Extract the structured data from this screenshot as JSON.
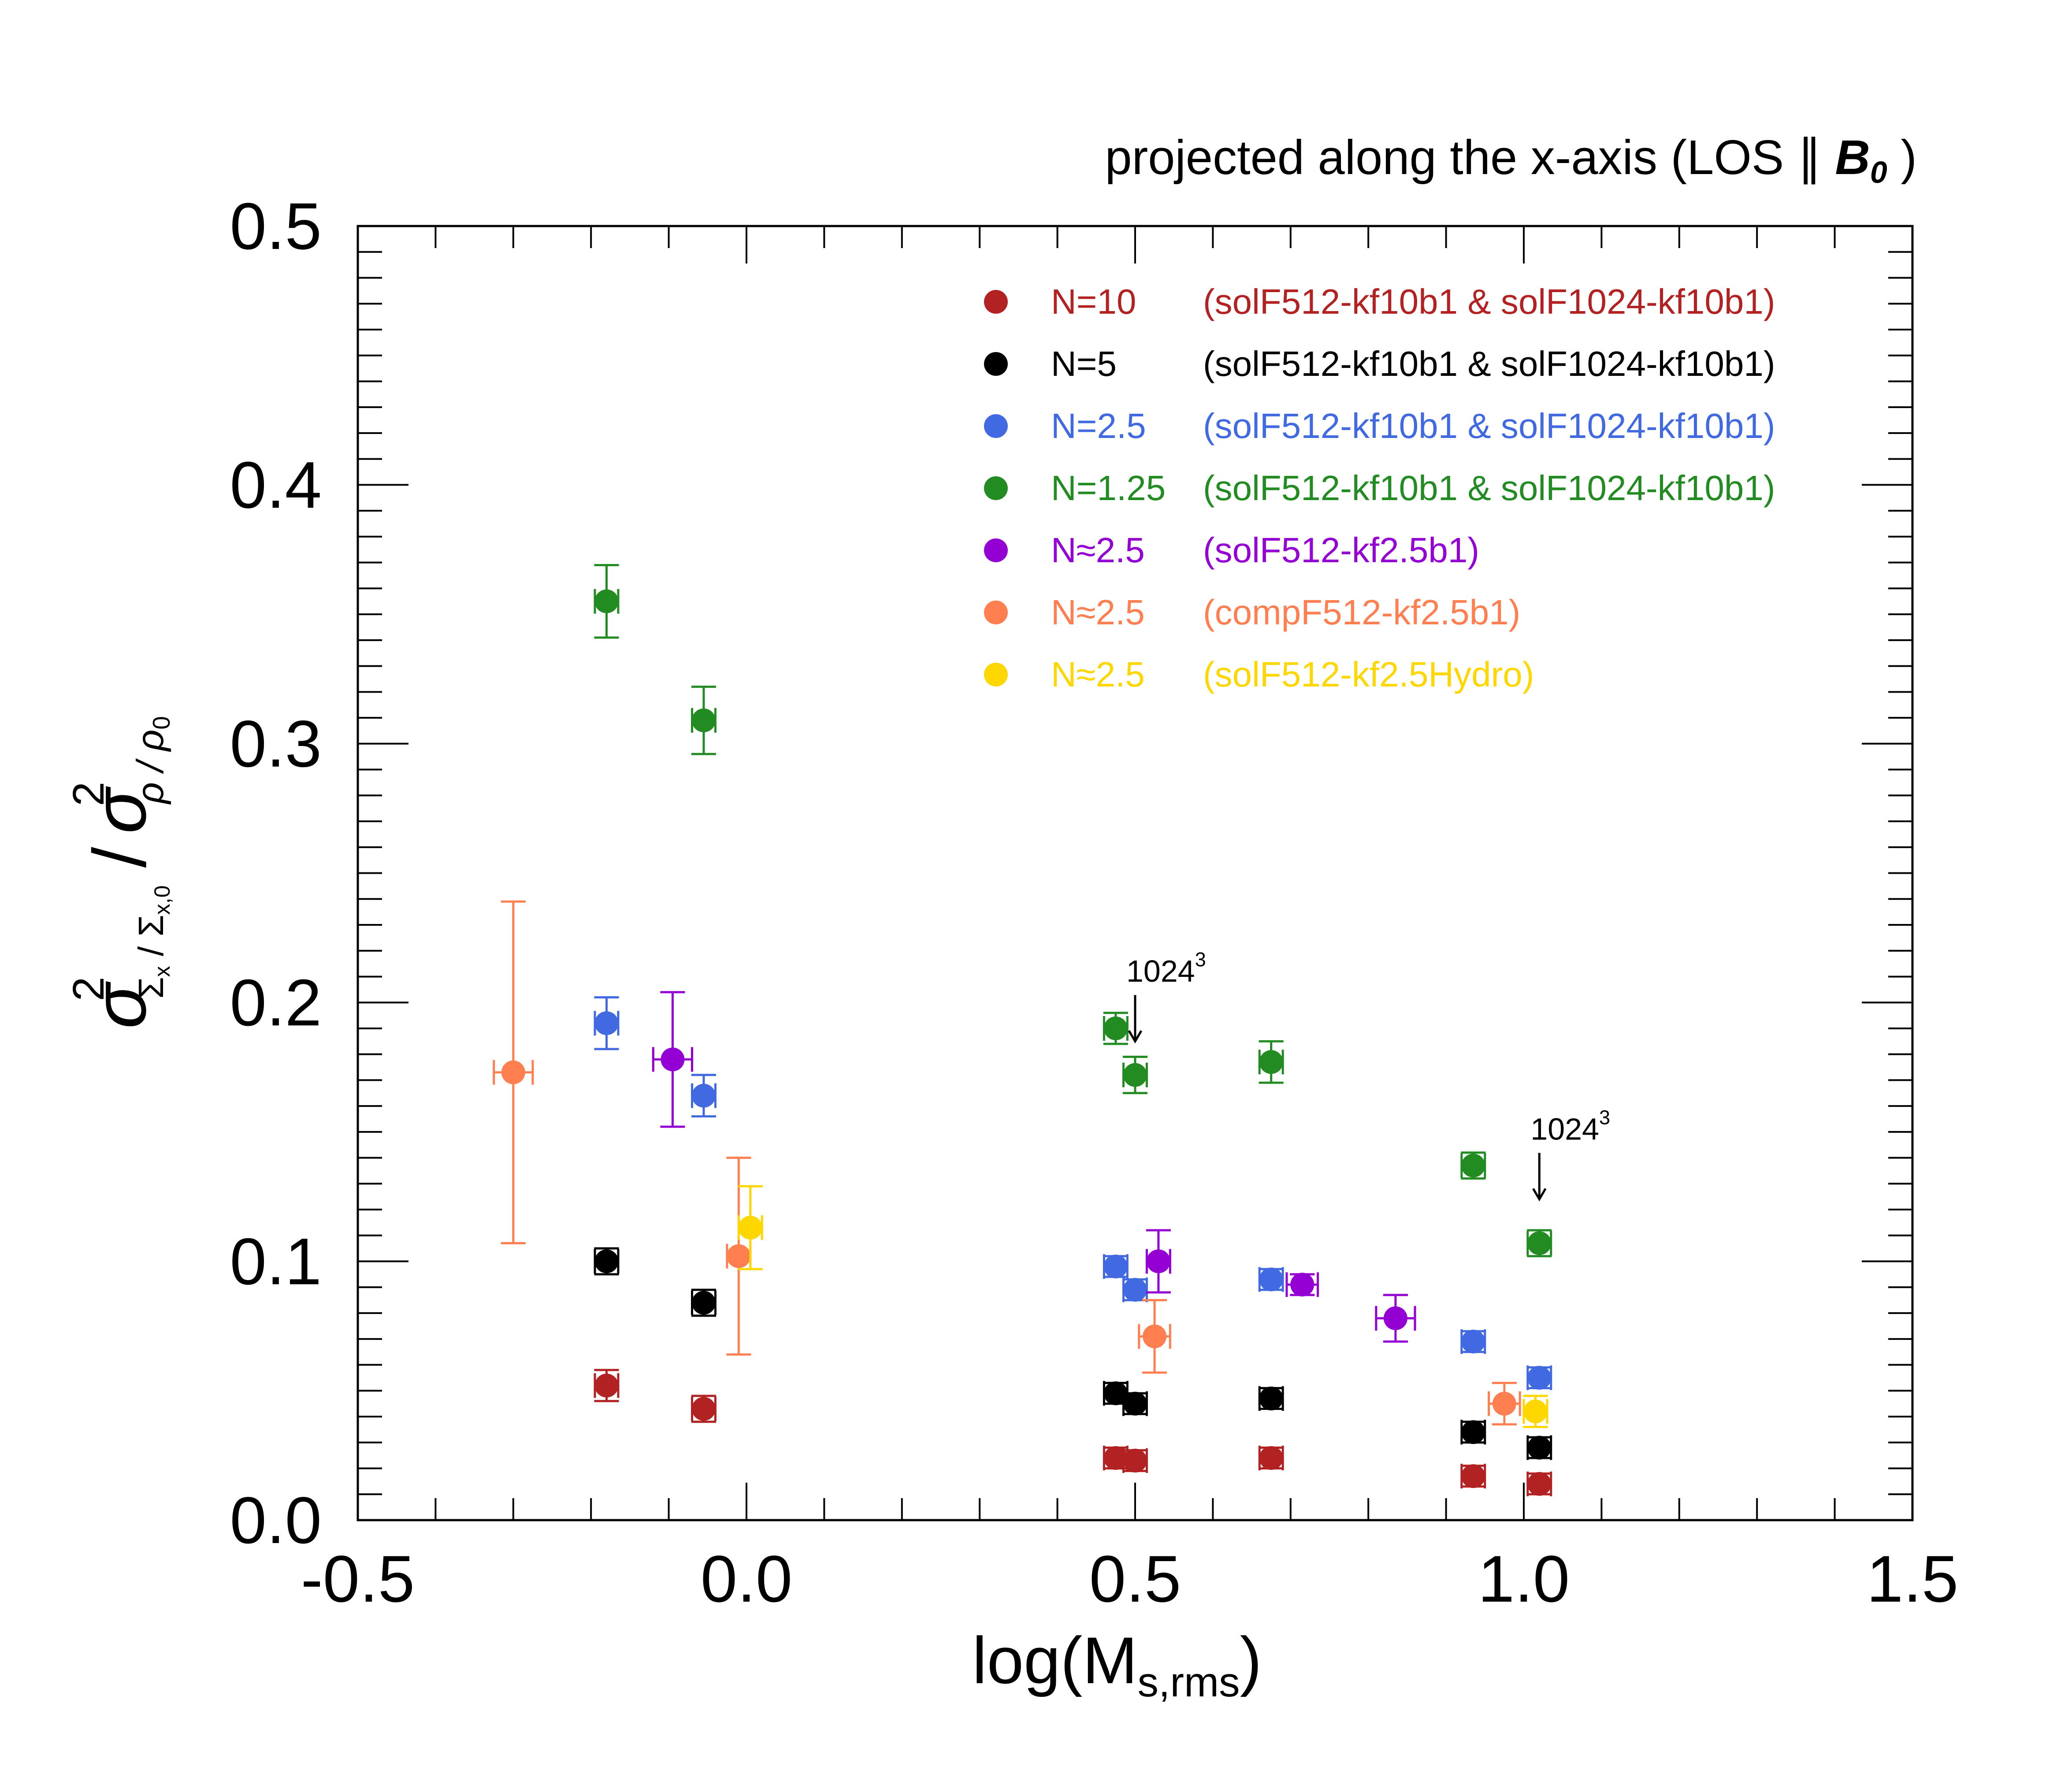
{
  "chart_data": {
    "type": "scatter",
    "title": "projected along the x-axis (LOS ∥ B₀)",
    "title_parts": {
      "prefix": "projected along the x-axis (LOS ∥ ",
      "b": "B",
      "b_sub": "0",
      "suffix": " )"
    },
    "xlabel": "log(M_s,rms)",
    "xlabel_parts": {
      "main": "log(M",
      "sub": "s,rms",
      "close": ")"
    },
    "ylabel": "σ²_{Σx/Σx,0} / σ²_{ρ/ρ0}",
    "ylabel_parts": {
      "sigma": "σ",
      "sq": "2",
      "num_sub": "Σ",
      "num_sub_x": "x",
      "slash_sub": " / ",
      "den_sub": "Σ",
      "den_sub_x": "x,0",
      "slash": "/",
      "den_sigma": "σ",
      "den_sq": "2",
      "rho_sub": "ρ / ρ",
      "rho0": "0"
    },
    "xlim": [
      -0.5,
      1.5
    ],
    "ylim": [
      0.0,
      0.5
    ],
    "xticks": [
      -0.5,
      0.0,
      0.5,
      1.0,
      1.5
    ],
    "xtick_labels": [
      "-0.5",
      "0.0",
      "0.5",
      "1.0",
      "1.5"
    ],
    "yticks": [
      0.0,
      0.1,
      0.2,
      0.3,
      0.4,
      0.5
    ],
    "ytick_labels": [
      "0.0",
      "0.1",
      "0.2",
      "0.3",
      "0.4",
      "0.5"
    ],
    "grid": false,
    "legend_position": "top-right",
    "series": [
      {
        "name": "N=10",
        "desc": "(solF512-kf10b1 & solF1024-kf10b1)",
        "color": "#b22222",
        "points": [
          {
            "x": -0.18,
            "y": 0.052,
            "xerr": 0.015,
            "yerr": 0.006
          },
          {
            "x": -0.055,
            "y": 0.043,
            "xerr": 0.015,
            "yerr": 0.005
          },
          {
            "x": 0.475,
            "y": 0.024,
            "xerr": 0.015,
            "yerr": 0.004
          },
          {
            "x": 0.5,
            "y": 0.023,
            "xerr": 0.015,
            "yerr": 0.004
          },
          {
            "x": 0.675,
            "y": 0.024,
            "xerr": 0.015,
            "yerr": 0.004
          },
          {
            "x": 0.935,
            "y": 0.017,
            "xerr": 0.015,
            "yerr": 0.004
          },
          {
            "x": 1.02,
            "y": 0.014,
            "xerr": 0.015,
            "yerr": 0.004
          }
        ]
      },
      {
        "name": "N=5",
        "desc": "(solF512-kf10b1 & solF1024-kf10b1)",
        "color": "#000000",
        "points": [
          {
            "x": -0.18,
            "y": 0.1,
            "xerr": 0.015,
            "yerr": 0.005
          },
          {
            "x": -0.055,
            "y": 0.084,
            "xerr": 0.015,
            "yerr": 0.005
          },
          {
            "x": 0.475,
            "y": 0.049,
            "xerr": 0.015,
            "yerr": 0.004
          },
          {
            "x": 0.5,
            "y": 0.045,
            "xerr": 0.015,
            "yerr": 0.004
          },
          {
            "x": 0.675,
            "y": 0.047,
            "xerr": 0.015,
            "yerr": 0.004
          },
          {
            "x": 0.935,
            "y": 0.034,
            "xerr": 0.015,
            "yerr": 0.004
          },
          {
            "x": 1.02,
            "y": 0.028,
            "xerr": 0.015,
            "yerr": 0.004
          }
        ]
      },
      {
        "name": "N=2.5",
        "desc": "(solF512-kf10b1 & solF1024-kf10b1)",
        "color": "#4169e1",
        "points": [
          {
            "x": -0.18,
            "y": 0.192,
            "xerr": 0.015,
            "yerr": 0.01
          },
          {
            "x": -0.055,
            "y": 0.164,
            "xerr": 0.015,
            "yerr": 0.008
          },
          {
            "x": 0.475,
            "y": 0.098,
            "xerr": 0.015,
            "yerr": 0.004
          },
          {
            "x": 0.5,
            "y": 0.089,
            "xerr": 0.015,
            "yerr": 0.004
          },
          {
            "x": 0.675,
            "y": 0.093,
            "xerr": 0.015,
            "yerr": 0.004
          },
          {
            "x": 0.935,
            "y": 0.069,
            "xerr": 0.015,
            "yerr": 0.004
          },
          {
            "x": 1.02,
            "y": 0.055,
            "xerr": 0.015,
            "yerr": 0.004
          }
        ]
      },
      {
        "name": "N=1.25",
        "desc": "(solF512-kf10b1 & solF1024-kf10b1)",
        "color": "#228b22",
        "points": [
          {
            "x": -0.18,
            "y": 0.355,
            "xerr": 0.015,
            "yerr": 0.014
          },
          {
            "x": -0.055,
            "y": 0.309,
            "xerr": 0.015,
            "yerr": 0.013
          },
          {
            "x": 0.475,
            "y": 0.19,
            "xerr": 0.015,
            "yerr": 0.006
          },
          {
            "x": 0.5,
            "y": 0.172,
            "xerr": 0.015,
            "yerr": 0.007
          },
          {
            "x": 0.675,
            "y": 0.177,
            "xerr": 0.015,
            "yerr": 0.008
          },
          {
            "x": 0.935,
            "y": 0.137,
            "xerr": 0.015,
            "yerr": 0.005
          },
          {
            "x": 1.02,
            "y": 0.107,
            "xerr": 0.015,
            "yerr": 0.005
          }
        ]
      },
      {
        "name": "N≈2.5",
        "desc": "(solF512-kf2.5b1)",
        "color": "#9400d3",
        "points": [
          {
            "x": -0.095,
            "y": 0.178,
            "xerr": 0.025,
            "yerr": 0.026
          },
          {
            "x": 0.53,
            "y": 0.1,
            "xerr": 0.015,
            "yerr": 0.012
          },
          {
            "x": 0.715,
            "y": 0.091,
            "xerr": 0.02,
            "yerr": 0.004
          },
          {
            "x": 0.835,
            "y": 0.078,
            "xerr": 0.025,
            "yerr": 0.009
          }
        ]
      },
      {
        "name": "N≈2.5",
        "desc": "(compF512-kf2.5b1)",
        "color": "#ff7f50",
        "points": [
          {
            "x": -0.3,
            "y": 0.173,
            "xerr": 0.025,
            "yerr": 0.066
          },
          {
            "x": -0.01,
            "y": 0.102,
            "xerr": 0.015,
            "yerr": 0.038
          },
          {
            "x": 0.525,
            "y": 0.071,
            "xerr": 0.02,
            "yerr": 0.014
          },
          {
            "x": 0.975,
            "y": 0.045,
            "xerr": 0.02,
            "yerr": 0.008
          }
        ]
      },
      {
        "name": "N≈2.5",
        "desc": "(solF512-kf2.5Hydro)",
        "color": "#ffd700",
        "points": [
          {
            "x": 0.005,
            "y": 0.113,
            "xerr": 0.015,
            "yerr": 0.016
          },
          {
            "x": 1.015,
            "y": 0.042,
            "xerr": 0.015,
            "yerr": 0.006
          }
        ]
      }
    ],
    "annotations": [
      {
        "text": "1024",
        "sup": "3",
        "x": 0.5,
        "y": 0.185,
        "label_y": 0.208
      },
      {
        "text": "1024",
        "sup": "3",
        "x": 1.02,
        "y": 0.124,
        "label_y": 0.147
      }
    ]
  }
}
